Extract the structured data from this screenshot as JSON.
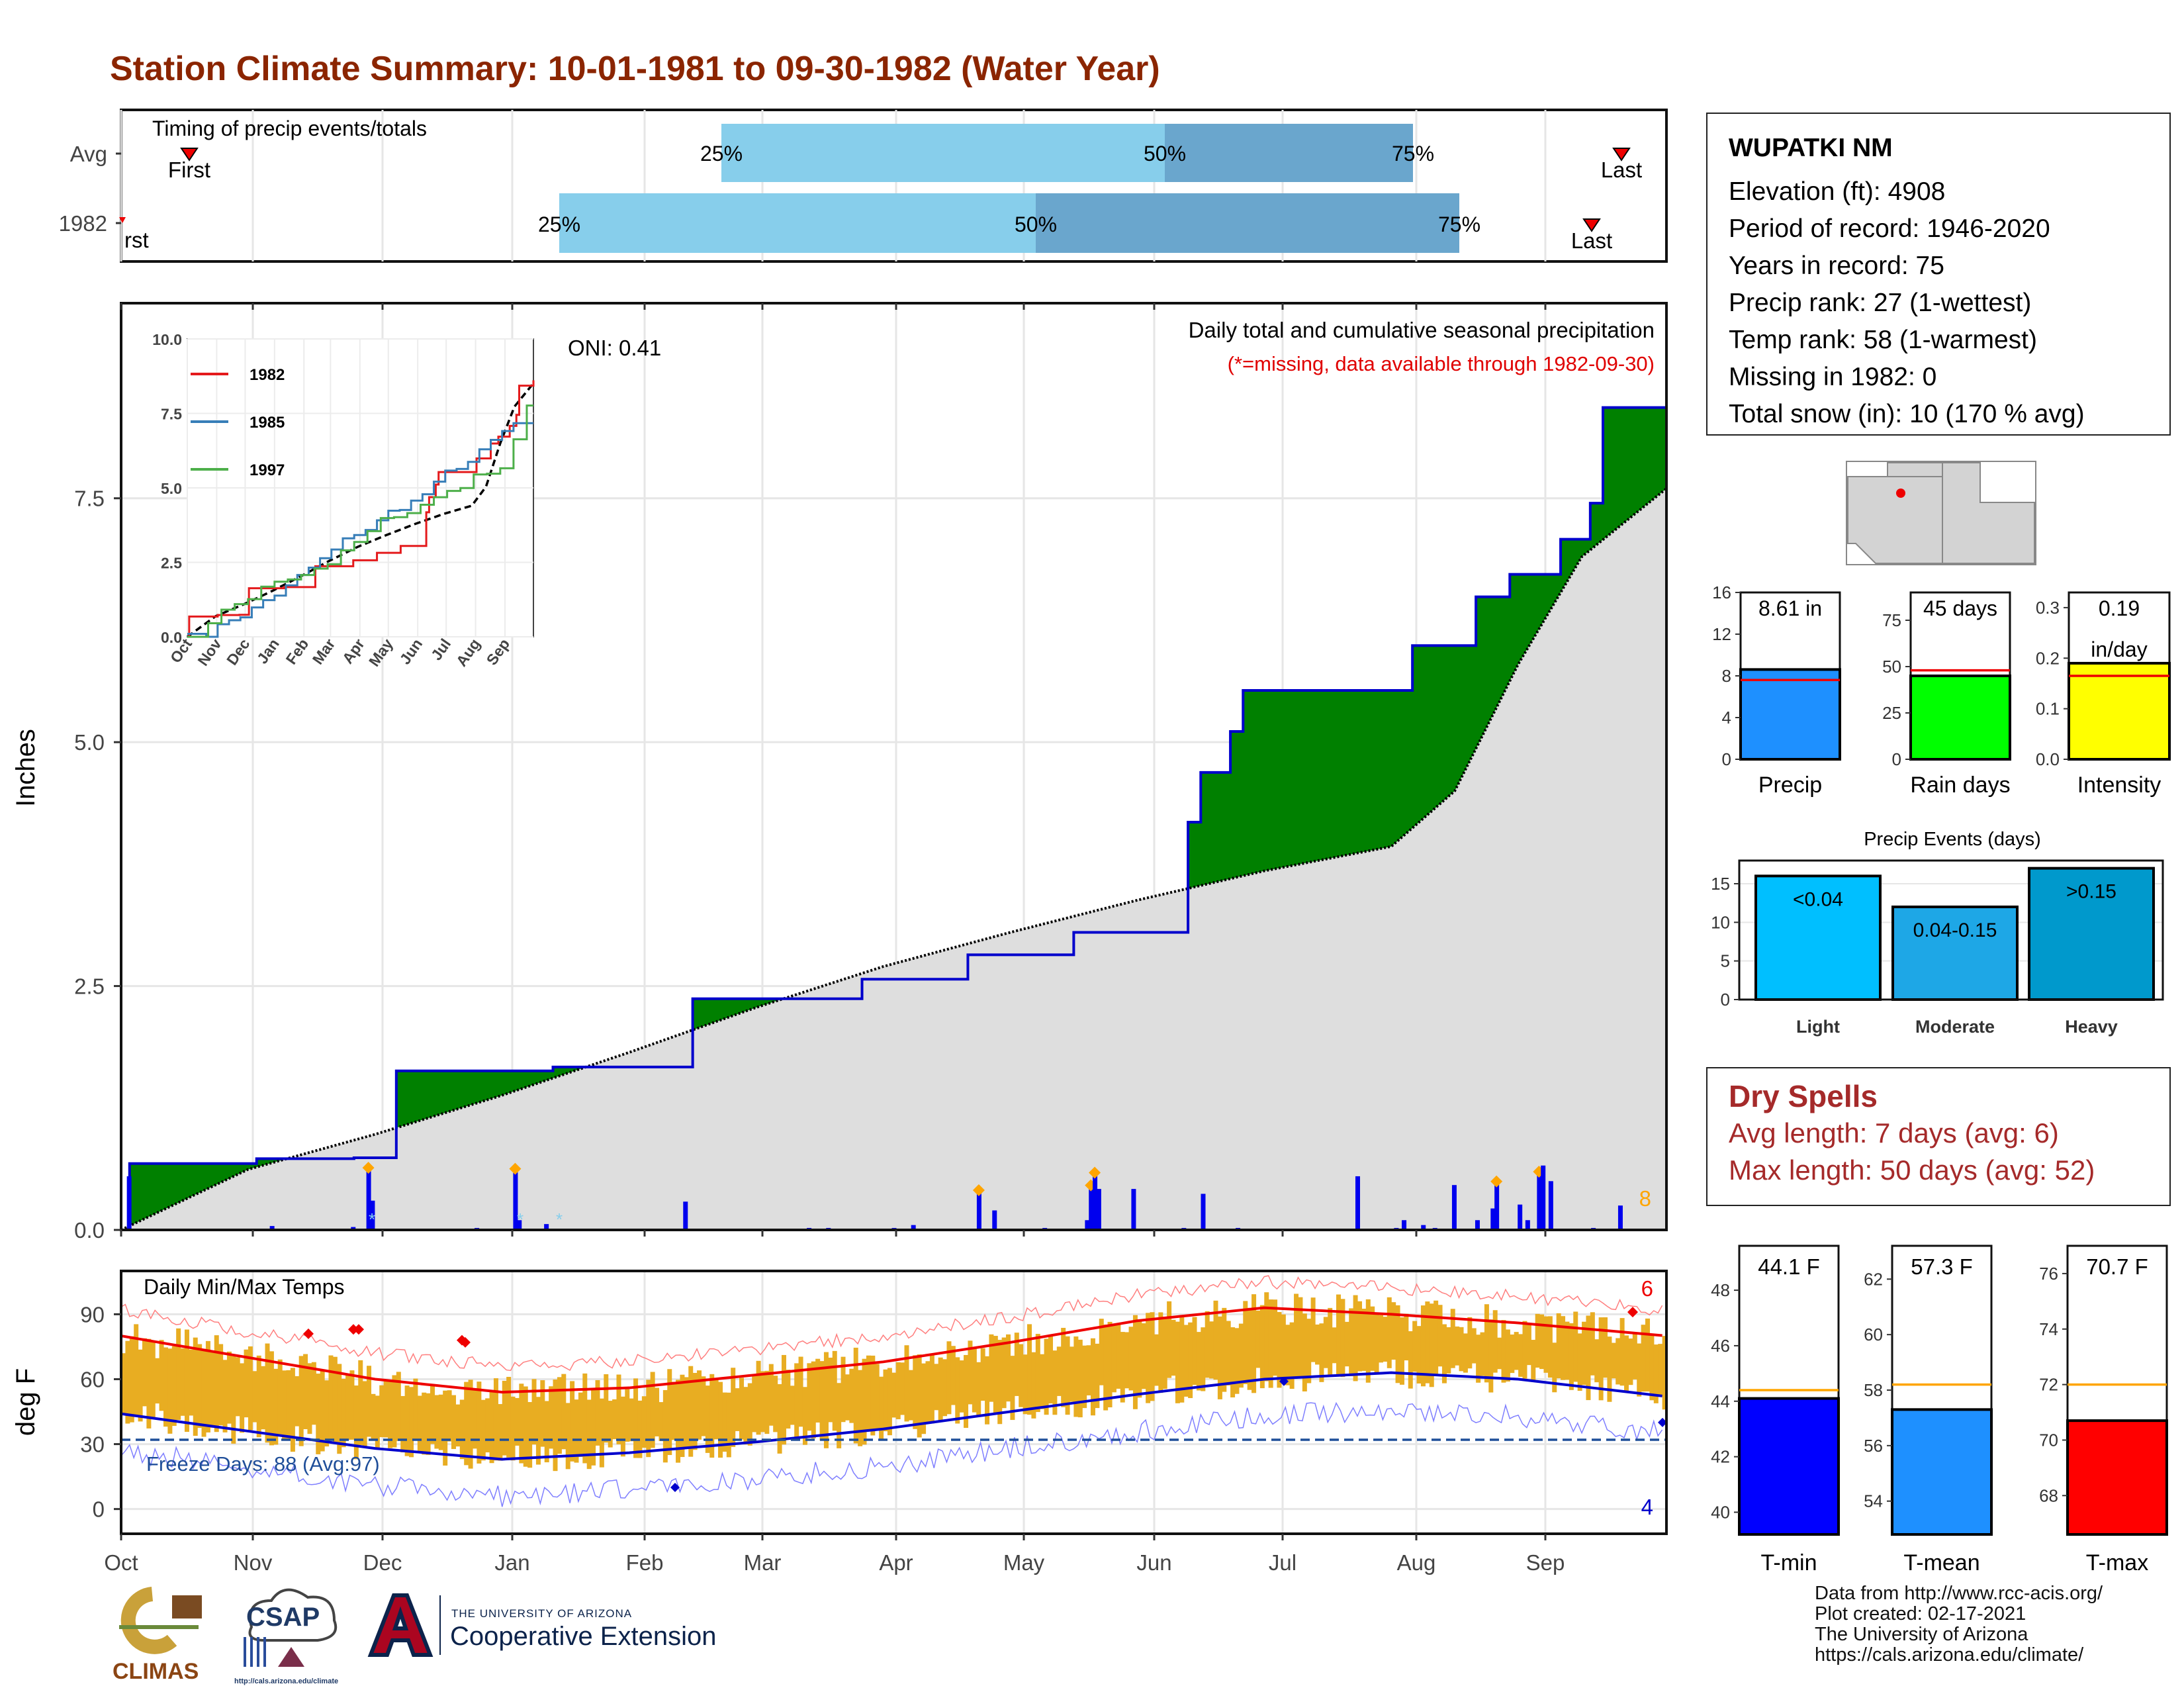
{
  "title": "Station Climate Summary: 10-01-1981 to 09-30-1982 (Water Year)",
  "colors": {
    "title": "#8b2500",
    "dry": "#a52a2a",
    "green": "#008000",
    "brown": "#8b5a14",
    "blue_line": "#0000cc",
    "bars": "#e8ad22"
  },
  "timing": {
    "label": "Timing of precip events/totals",
    "rows": [
      "Avg",
      "1982"
    ],
    "first_label": "First",
    "last_label": "Last",
    "first_label_cut": "rst",
    "pct_labels": [
      "25%",
      "50%",
      "75%"
    ]
  },
  "station": {
    "name": "WUPATKI NM",
    "lines": [
      "Elevation (ft): 4908",
      "Period of record: 1946-2020",
      "Years in record: 75",
      "Precip rank: 27 (1-wettest)",
      "Temp rank: 58 (1-warmest)",
      "Missing in 1982: 0",
      "Total snow (in): 10 (170 % avg)"
    ]
  },
  "precip_panel": {
    "ylabel": "Inches",
    "oni": "ONI: 0.41",
    "title": "Daily total and cumulative seasonal precipitation",
    "missing_note": "(*=missing, data available through 1982-09-30)",
    "count_label": "8",
    "yticks": [
      "0.0",
      "2.5",
      "5.0",
      "7.5"
    ]
  },
  "inset": {
    "legend": [
      "1982",
      "1985",
      "1997"
    ],
    "yticks": [
      "0.0",
      "2.5",
      "5.0",
      "7.5",
      "10.0"
    ],
    "xticks": [
      "Oct",
      "Nov",
      "Dec",
      "Jan",
      "Feb",
      "Mar",
      "Apr",
      "May",
      "Jun",
      "Jul",
      "Aug",
      "Sep"
    ]
  },
  "temp_panel": {
    "ylabel": "deg F",
    "title": "Daily Min/Max Temps",
    "freeze": "Freeze Days: 88 (Avg:97)",
    "record_high_count": "6",
    "record_low_count": "4",
    "yticks": [
      "0",
      "30",
      "60",
      "90"
    ]
  },
  "months": [
    "Oct",
    "Nov",
    "Dec",
    "Jan",
    "Feb",
    "Mar",
    "Apr",
    "May",
    "Jun",
    "Jul",
    "Aug",
    "Sep"
  ],
  "summary_bars": {
    "precip": {
      "label": "Precip",
      "value_text": "8.61 in",
      "value": 8.61,
      "avg": 7.6,
      "yticks": [
        "0",
        "4",
        "8",
        "12",
        "16"
      ],
      "color": "#1e90ff"
    },
    "rain_days": {
      "label": "Rain days",
      "value_text": "45 days",
      "value": 45,
      "avg": 48,
      "yticks": [
        "0",
        "25",
        "50",
        "75"
      ],
      "color": "#00ff00"
    },
    "intensity": {
      "label": "Intensity",
      "value_text": "0.19",
      "value_text2": "in/day",
      "value": 0.19,
      "avg": 0.165,
      "yticks": [
        "0.0",
        "0.1",
        "0.2",
        "0.3"
      ],
      "color": "#ffff00"
    }
  },
  "events": {
    "title": "Precip Events (days)",
    "yticks": [
      "0",
      "5",
      "10",
      "15"
    ],
    "bars": [
      {
        "label": "Light",
        "range": "<0.04",
        "value": 16,
        "color": "#00bfff"
      },
      {
        "label": "Moderate",
        "range": "0.04-0.15",
        "value": 12,
        "color": "#1ea7e6"
      },
      {
        "label": "Heavy",
        "range": ">0.15",
        "value": 17,
        "color": "#0099cc"
      }
    ]
  },
  "dry_spells": {
    "title": "Dry Spells",
    "avg_line": "Avg length: 7 days (avg: 6)",
    "max_line": "Max length: 50 days (avg: 52)"
  },
  "temp_bars": {
    "tmin": {
      "label": "T-min",
      "value_text": "44.1 F",
      "value": 44.1,
      "avg": 44.4,
      "yticks": [
        "40",
        "42",
        "44",
        "46",
        "48"
      ],
      "color": "#0000ff"
    },
    "tmean": {
      "label": "T-mean",
      "value_text": "57.3 F",
      "value": 57.3,
      "avg": 58.2,
      "yticks": [
        "54",
        "56",
        "58",
        "60",
        "62"
      ],
      "color": "#1e90ff"
    },
    "tmax": {
      "label": "T-max",
      "value_text": "70.7 F",
      "value": 70.7,
      "avg": 72.0,
      "yticks": [
        "68",
        "70",
        "72",
        "74",
        "76"
      ],
      "color": "#ff0000"
    }
  },
  "credits": [
    "Data from http://www.rcc-acis.org/",
    "Plot created: 02-17-2021",
    "The University of Arizona",
    "https://cals.arizona.edu/climate/"
  ],
  "logos": {
    "climas": "CLIMAS",
    "csap": "CSAP",
    "csap_url": "http://cals.arizona.edu/climate",
    "ua_line1": "THE UNIVERSITY OF ARIZONA",
    "ua_line2": "Cooperative Extension"
  },
  "chart_data": [
    {
      "type": "line",
      "title": "Daily total and cumulative seasonal precipitation",
      "ylabel": "Inches",
      "ylim": [
        0,
        9.5
      ],
      "x_units": "day of water year (Oct 1 = 0)",
      "series": [
        {
          "name": "1982",
          "x": [
            0,
            2,
            30,
            32,
            45,
            55,
            56,
            65,
            100,
            102,
            130,
            135,
            175,
            180,
            200,
            222,
            225,
            240,
            252,
            255,
            262,
            265,
            300,
            305,
            320,
            328,
            340,
            347,
            350,
            365
          ],
          "y": [
            0.0,
            0.68,
            0.68,
            0.73,
            0.73,
            0.74,
            0.74,
            1.63,
            1.63,
            1.67,
            1.67,
            2.37,
            2.57,
            2.57,
            2.82,
            2.82,
            3.05,
            3.05,
            4.18,
            4.69,
            5.11,
            5.53,
            5.53,
            5.99,
            6.49,
            6.72,
            7.08,
            7.45,
            8.43,
            8.61
          ]
        },
        {
          "name": "Avg",
          "x": [
            0,
            30,
            60,
            90,
            120,
            150,
            180,
            210,
            240,
            270,
            300,
            315,
            330,
            345,
            365
          ],
          "y": [
            0.0,
            0.62,
            0.98,
            1.38,
            1.82,
            2.28,
            2.7,
            3.05,
            3.38,
            3.68,
            3.93,
            4.5,
            5.8,
            6.9,
            7.6
          ]
        }
      ]
    },
    {
      "type": "line",
      "title": "Daily Min/Max Temps",
      "ylabel": "deg F",
      "ylim": [
        -5,
        110
      ],
      "x_units": "day of water year (Oct 1 = 0)",
      "series": [
        {
          "name": "avg max",
          "x": [
            0,
            30,
            60,
            90,
            120,
            150,
            180,
            210,
            240,
            270,
            300,
            330,
            365
          ],
          "y": [
            80,
            70,
            60,
            54,
            56,
            62,
            68,
            77,
            87,
            93,
            90,
            86,
            80
          ]
        },
        {
          "name": "avg min",
          "x": [
            0,
            30,
            60,
            90,
            120,
            150,
            180,
            210,
            240,
            270,
            300,
            330,
            365
          ],
          "y": [
            44,
            36,
            28,
            23,
            26,
            31,
            37,
            45,
            53,
            60,
            63,
            60,
            52
          ]
        },
        {
          "name": "freeze",
          "x": [
            0,
            365
          ],
          "y": [
            32,
            32
          ]
        }
      ]
    },
    {
      "type": "bar",
      "title": "Precip Events (days)",
      "categories": [
        "Light",
        "Moderate",
        "Heavy"
      ],
      "values": [
        16,
        12,
        17
      ]
    }
  ]
}
